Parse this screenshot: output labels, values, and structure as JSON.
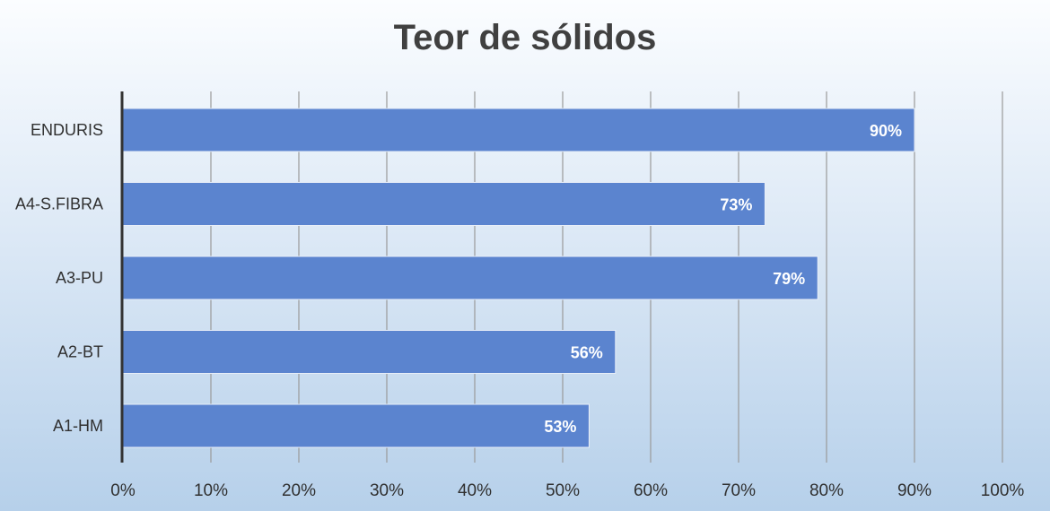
{
  "chart_data": {
    "type": "bar",
    "orientation": "horizontal",
    "title": "Teor de sólidos",
    "categories": [
      "ENDURIS",
      "A4-S.FIBRA",
      "A3-PU",
      "A2-BT",
      "A1-HM"
    ],
    "values": [
      90,
      73,
      79,
      56,
      53
    ],
    "data_labels": [
      "90%",
      "73%",
      "79%",
      "56%",
      "53%"
    ],
    "xlim": [
      0,
      100
    ],
    "x_ticks": [
      "0%",
      "10%",
      "20%",
      "30%",
      "40%",
      "50%",
      "60%",
      "70%",
      "80%",
      "90%",
      "100%"
    ],
    "grid": true,
    "bar_color": "#5b84cf",
    "legend": "none"
  }
}
